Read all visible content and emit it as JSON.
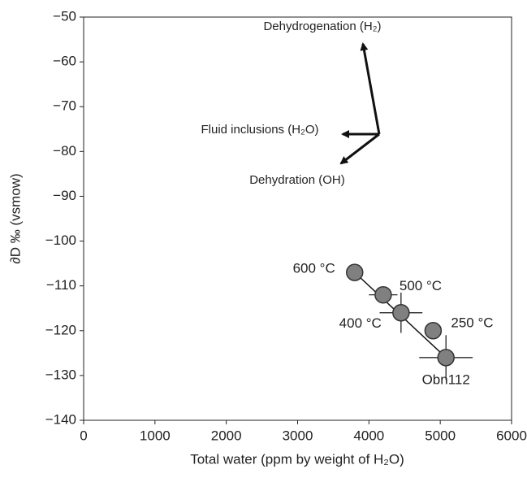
{
  "chart_data": {
    "type": "scatter",
    "xlabel": "Total water (ppm by weight of H₂O)",
    "ylabel": "∂D ‰ (vsmow)",
    "xlim": [
      0,
      6000
    ],
    "xticks": [
      0,
      1000,
      2000,
      3000,
      4000,
      5000,
      6000
    ],
    "ylim": [
      -140,
      -50
    ],
    "yticks": [
      {
        "value": -50,
        "label": "−50"
      },
      {
        "value": -60,
        "label": "−60"
      },
      {
        "value": -70,
        "label": "−70"
      },
      {
        "value": -80,
        "label": "−80"
      },
      {
        "value": -90,
        "label": "−90"
      },
      {
        "value": -100,
        "label": "−100"
      },
      {
        "value": -110,
        "label": "−110"
      },
      {
        "value": -120,
        "label": "−120"
      },
      {
        "value": -130,
        "label": "−130"
      },
      {
        "value": -140,
        "label": "−140"
      }
    ],
    "series": [
      {
        "color": "#808080",
        "x": [
          3800,
          4200,
          4450,
          4900,
          5080
        ],
        "values": [
          -107,
          -112,
          -116,
          -120,
          -126
        ],
        "x_err": [
          null,
          200,
          300,
          null,
          375
        ],
        "y_err": [
          null,
          null,
          4.5,
          null,
          5
        ],
        "labels": [
          "600 °C",
          "500 °C",
          "400 °C",
          "250 °C",
          "Obn112"
        ]
      }
    ],
    "trend_line": {
      "x": [
        3800,
        5080
      ],
      "y": [
        -107,
        -126
      ]
    },
    "annotations": [
      "Dehydrogenation (H₂)",
      "Fluid inclusions (H₂O)",
      "Dehydration (OH)"
    ]
  }
}
